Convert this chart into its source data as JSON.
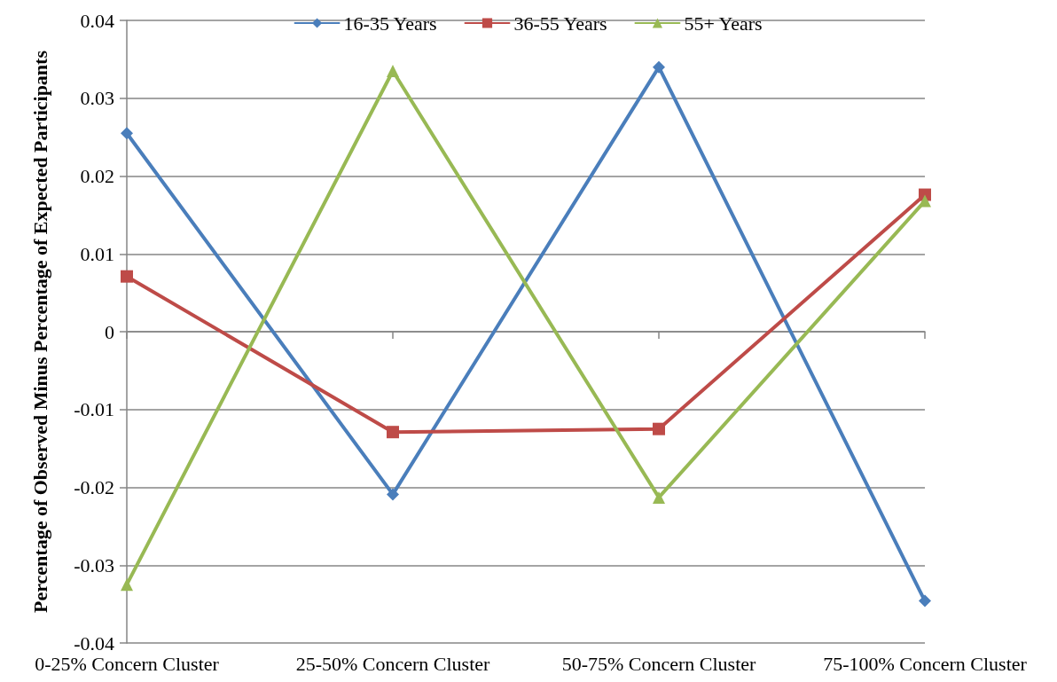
{
  "chart_data": {
    "type": "line",
    "ylabel": "Percentage of Observed Minus Percentage of Expected Participants",
    "categories": [
      "0-25% Concern Cluster",
      "25-50% Concern Cluster",
      "50-75% Concern Cluster",
      "75-100% Concern Cluster"
    ],
    "series": [
      {
        "name": "16-35 Years",
        "color": "#4a7ebb",
        "marker": "diamond",
        "values": [
          0.0255,
          -0.0209,
          0.034,
          -0.0346
        ]
      },
      {
        "name": "36-55 Years",
        "color": "#be4b48",
        "marker": "square",
        "values": [
          0.0071,
          -0.0129,
          -0.0125,
          0.0176
        ]
      },
      {
        "name": "55+ Years",
        "color": "#98b954",
        "marker": "triangle",
        "values": [
          -0.0325,
          0.0335,
          -0.0213,
          0.0168
        ]
      }
    ],
    "ylim": [
      -0.04,
      0.04
    ],
    "yticks": [
      -0.04,
      -0.03,
      -0.02,
      -0.01,
      0,
      0.01,
      0.02,
      0.03,
      0.04
    ],
    "grid": "y",
    "legend": "top",
    "line_style": "solid"
  }
}
